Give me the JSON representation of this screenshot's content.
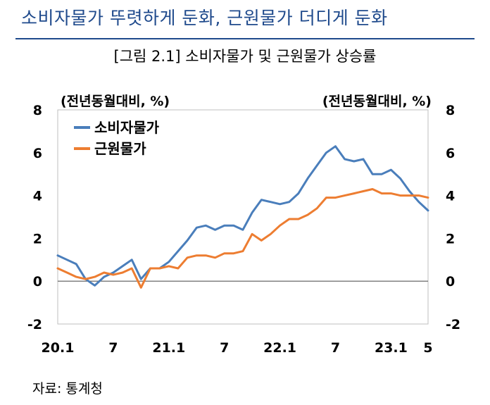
{
  "headline": "소비자물가 뚜렷하게 둔화, 근원물가 더디게 둔화",
  "figure_title": "[그림 2.1] 소비자물가 및 근원물가 상승률",
  "source": "자료: 통계청",
  "chart_data": {
    "type": "line",
    "title": "[그림 2.1] 소비자물가 및 근원물가 상승률",
    "y_left_unit": "(전년동월대비, %)",
    "y_right_unit": "(전년동월대비, %)",
    "ylim": [
      -2,
      8
    ],
    "yticks": [
      8,
      6,
      4,
      2,
      0,
      -2
    ],
    "x_tick_labels": [
      {
        "index": 0,
        "label": "20.1"
      },
      {
        "index": 6,
        "label": "7"
      },
      {
        "index": 12,
        "label": "21.1"
      },
      {
        "index": 18,
        "label": "7"
      },
      {
        "index": 24,
        "label": "22.1"
      },
      {
        "index": 30,
        "label": "7"
      },
      {
        "index": 36,
        "label": "23.1"
      },
      {
        "index": 40,
        "label": "5"
      }
    ],
    "grid": false,
    "legend_position": "top-left",
    "series": [
      {
        "name": "소비자물가",
        "color": "#4a7ebb",
        "values": [
          1.2,
          1.0,
          0.8,
          0.1,
          -0.2,
          0.2,
          0.4,
          0.7,
          1.0,
          0.1,
          0.6,
          0.6,
          0.9,
          1.4,
          1.9,
          2.5,
          2.6,
          2.4,
          2.6,
          2.6,
          2.4,
          3.2,
          3.8,
          3.7,
          3.6,
          3.7,
          4.1,
          4.8,
          5.4,
          6.0,
          6.3,
          5.7,
          5.6,
          5.7,
          5.0,
          5.0,
          5.2,
          4.8,
          4.2,
          3.7,
          3.3
        ]
      },
      {
        "name": "근원물가",
        "color": "#ed7d31",
        "values": [
          0.6,
          0.4,
          0.2,
          0.1,
          0.2,
          0.4,
          0.3,
          0.4,
          0.6,
          -0.3,
          0.6,
          0.6,
          0.7,
          0.6,
          1.1,
          1.2,
          1.2,
          1.1,
          1.3,
          1.3,
          1.4,
          2.2,
          1.9,
          2.2,
          2.6,
          2.9,
          2.9,
          3.1,
          3.4,
          3.9,
          3.9,
          4.0,
          4.1,
          4.2,
          4.3,
          4.1,
          4.1,
          4.0,
          4.0,
          4.0,
          3.9
        ]
      }
    ]
  }
}
